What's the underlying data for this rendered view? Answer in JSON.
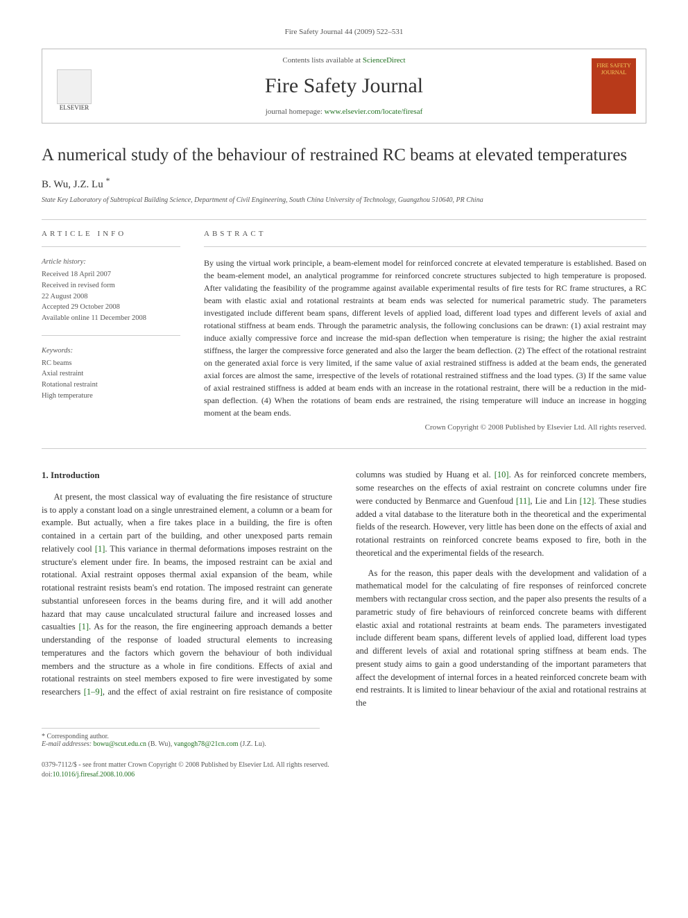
{
  "page_header": "Fire Safety Journal 44 (2009) 522–531",
  "journal_box": {
    "publisher": "ELSEVIER",
    "contents_prefix": "Contents lists available at ",
    "contents_link": "ScienceDirect",
    "journal_title": "Fire Safety Journal",
    "homepage_prefix": "journal homepage: ",
    "homepage_link": "www.elsevier.com/locate/firesaf",
    "cover_text": "FIRE SAFETY JOURNAL"
  },
  "article": {
    "title": "A numerical study of the behaviour of restrained RC beams at elevated temperatures",
    "authors": "B. Wu, J.Z. Lu",
    "corresp_mark": "*",
    "affiliation": "State Key Laboratory of Subtropical Building Science, Department of Civil Engineering, South China University of Technology, Guangzhou 510640, PR China"
  },
  "meta": {
    "info_heading": "ARTICLE INFO",
    "history_head": "Article history:",
    "history_lines": [
      "Received 18 April 2007",
      "Received in revised form",
      "22 August 2008",
      "Accepted 29 October 2008",
      "Available online 11 December 2008"
    ],
    "keywords_head": "Keywords:",
    "keywords": [
      "RC beams",
      "Axial restraint",
      "Rotational restraint",
      "High temperature"
    ]
  },
  "abstract": {
    "heading": "ABSTRACT",
    "text": "By using the virtual work principle, a beam-element model for reinforced concrete at elevated temperature is established. Based on the beam-element model, an analytical programme for reinforced concrete structures subjected to high temperature is proposed. After validating the feasibility of the programme against available experimental results of fire tests for RC frame structures, a RC beam with elastic axial and rotational restraints at beam ends was selected for numerical parametric study. The parameters investigated include different beam spans, different levels of applied load, different load types and different levels of axial and rotational stiffness at beam ends. Through the parametric analysis, the following conclusions can be drawn: (1) axial restraint may induce axially compressive force and increase the mid-span deflection when temperature is rising; the higher the axial restraint stiffness, the larger the compressive force generated and also the larger the beam deflection. (2) The effect of the rotational restraint on the generated axial force is very limited, if the same value of axial restrained stiffness is added at the beam ends, the generated axial forces are almost the same, irrespective of the levels of rotational restrained stiffness and the load types. (3) If the same value of axial restrained stiffness is added at beam ends with an increase in the rotational restraint, there will be a reduction in the mid-span deflection. (4) When the rotations of beam ends are restrained, the rising temperature will induce an increase in hogging moment at the beam ends.",
    "copyright": "Crown Copyright © 2008 Published by Elsevier Ltd. All rights reserved."
  },
  "body": {
    "intro_heading": "1.  Introduction",
    "para1_a": "At present, the most classical way of evaluating the fire resistance of structure is to apply a constant load on a single unrestrained element, a column or a beam for example. But actually, when a fire takes place in a building, the fire is often contained in a certain part of the building, and other unexposed parts remain relatively cool ",
    "para1_cite1": "[1]",
    "para1_b": ". This variance in thermal deformations imposes restraint on the structure's element under fire. In beams, the imposed restraint can be axial and rotational. Axial restraint opposes thermal axial expansion of the beam, while rotational restraint resists beam's end rotation. The imposed restraint can generate substantial unforeseen forces in the beams during fire, and it will add another hazard that may cause uncalculated structural failure and increased losses and casualties ",
    "para1_cite2": "[1]",
    "para1_c": ". As for the reason, the fire engineering approach demands a better understanding of the response of loaded structural elements to increasing temperatures and the factors which govern the behaviour of both individual members and the structure as a whole in fire conditions. Effects of axial and rotational restraints on steel members exposed to fire were investigated by some researchers ",
    "para1_cite3": "[1–9]",
    "para1_d": ", and the effect of axial restraint on fire resistance of composite columns was studied by Huang et al. ",
    "para1_cite4": "[10]",
    "para1_e": ". As for reinforced concrete members, some researches on the effects of axial restraint on concrete columns under fire were conducted by Benmarce and Guenfoud ",
    "para1_cite5": "[11]",
    "para1_f": ", Lie and Lin ",
    "para1_cite6": "[12]",
    "para1_g": ". These studies added a vital database to the literature both in the theoretical and the experimental fields of the research. However, very little has been done on the effects of axial and rotational restraints on reinforced concrete beams exposed to fire, both in the theoretical and the experimental fields of the research.",
    "para2": "As for the reason, this paper deals with the development and validation of a mathematical model for the calculating of fire responses of reinforced concrete members with rectangular cross section, and the paper also presents the results of a parametric study of fire behaviours of reinforced concrete beams with different elastic axial and rotational restraints at beam ends. The parameters investigated include different beam spans, different levels of applied load, different load types and different levels of axial and rotational spring stiffness at beam ends. The present study aims to gain a good understanding of the important parameters that affect the development of internal forces in a heated reinforced concrete beam with end restraints. It is limited to linear behaviour of the axial and rotational restrains at the"
  },
  "footnotes": {
    "corresp": "* Corresponding author.",
    "emails_label": "E-mail addresses: ",
    "email1": "bowu@scut.edu.cn",
    "email1_author": " (B. Wu), ",
    "email2": "vangogh78@21cn.com",
    "email2_author": " (J.Z. Lu)."
  },
  "page_footer": {
    "front_matter": "0379-7112/$ - see front matter Crown Copyright © 2008 Published by Elsevier Ltd. All rights reserved.",
    "doi_label": "doi:",
    "doi": "10.1016/j.firesaf.2008.10.006"
  },
  "colors": {
    "link": "#207020",
    "text": "#333333",
    "muted": "#555555",
    "rule": "#cccccc",
    "cover_bg": "#b83a1a",
    "cover_text": "#f5d060"
  },
  "typography": {
    "body_pt": 12.5,
    "title_pt": 25,
    "journal_title_pt": 30,
    "abstract_pt": 12,
    "meta_pt": 10.5,
    "footnote_pt": 10
  }
}
